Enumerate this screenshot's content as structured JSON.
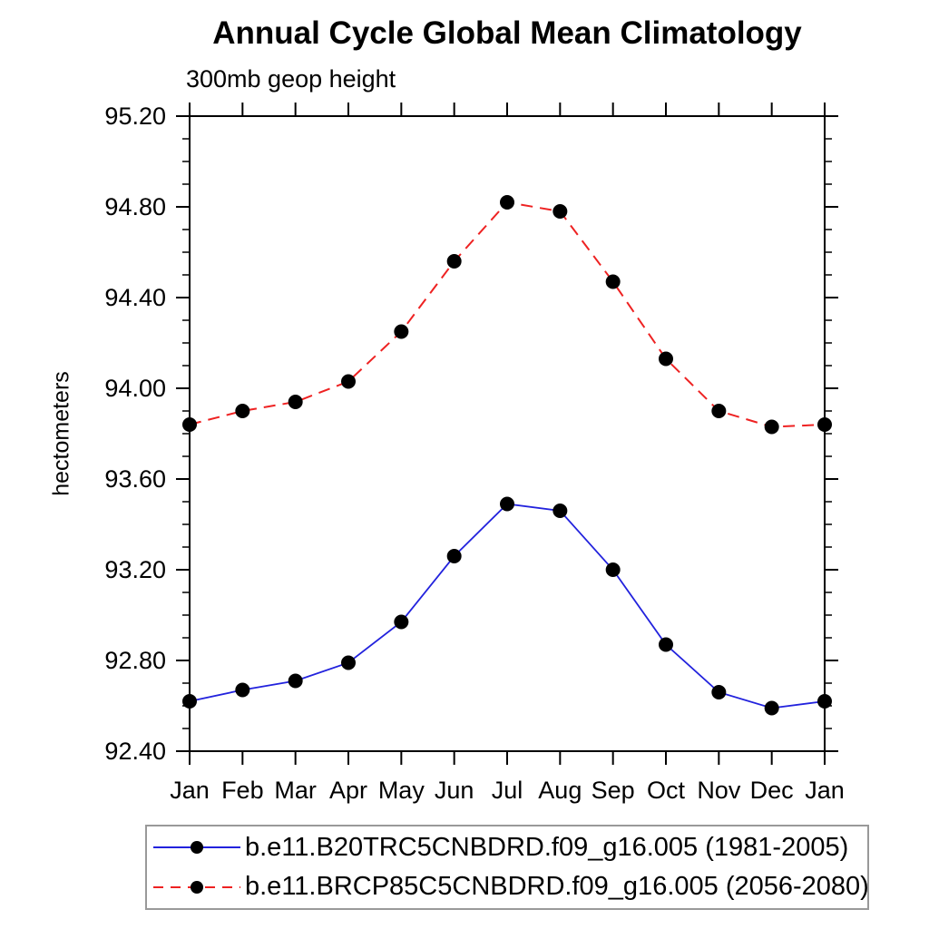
{
  "page": {
    "background_color": "#ffffff"
  },
  "chart_data": {
    "type": "line",
    "title": "Annual Cycle Global Mean Climatology",
    "subtitle": "300mb geop height",
    "ylabel": "hectometers",
    "xlabel": "",
    "categories": [
      "Jan",
      "Feb",
      "Mar",
      "Apr",
      "May",
      "Jun",
      "Jul",
      "Aug",
      "Sep",
      "Oct",
      "Nov",
      "Dec",
      "Jan"
    ],
    "ylim": [
      92.4,
      95.2
    ],
    "ytick_major": 0.4,
    "ytick_minor": 0.1,
    "ytick_label_format": "2dp",
    "grid": false,
    "legend_position": "bottom",
    "axis_color": "#000000",
    "marker_color": "#000000",
    "marker_shape": "filled-circle",
    "series": [
      {
        "name": "b.e11.B20TRC5CNBDRD.f09_g16.005 (1981-2005)",
        "color": "#2222dd",
        "style": "solid",
        "values": [
          92.62,
          92.67,
          92.71,
          92.79,
          92.97,
          93.26,
          93.49,
          93.46,
          93.2,
          92.87,
          92.66,
          92.59,
          92.62
        ]
      },
      {
        "name": "b.e11.BRCP85C5CNBDRD.f09_g16.005 (2056-2080)",
        "color": "#ee2222",
        "style": "dashed",
        "values": [
          93.84,
          93.9,
          93.94,
          94.03,
          94.25,
          94.56,
          94.82,
          94.78,
          94.47,
          94.13,
          93.9,
          93.83,
          93.84
        ]
      }
    ]
  },
  "legend": {
    "border_color": "#999999"
  }
}
